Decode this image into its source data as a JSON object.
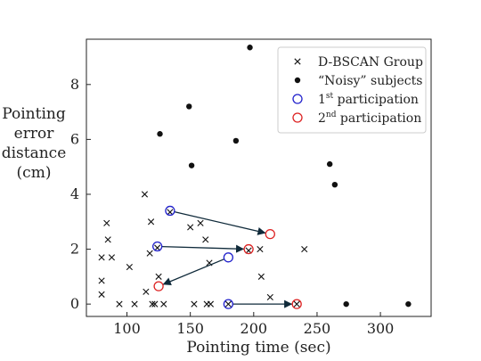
{
  "chart_data": {
    "type": "scatter",
    "xlabel": "Pointing time (sec)",
    "ylabel_lines": [
      "Pointing",
      "error",
      "distance",
      "(cm)"
    ],
    "xlim": [
      68,
      340
    ],
    "ylim": [
      -0.45,
      9.65
    ],
    "xticks": [
      100,
      150,
      200,
      250,
      300
    ],
    "yticks": [
      0,
      2,
      4,
      6,
      8
    ],
    "grid": false,
    "legend_position": "top-right",
    "legend": [
      {
        "label": "D-BSCAN Group",
        "sup": "",
        "suffix": "",
        "marker": "x"
      },
      {
        "label": "“Noisy” subjects",
        "sup": "",
        "suffix": "",
        "marker": "dot"
      },
      {
        "label": "1",
        "sup": "st",
        "suffix": " participation",
        "marker": "circle-blue"
      },
      {
        "label": "2",
        "sup": "nd",
        "suffix": " participation",
        "marker": "circle-red"
      }
    ],
    "colors": {
      "first": "#2222cc",
      "second": "#dd2222",
      "marker": "#111111"
    },
    "series": [
      {
        "name": "D-BSCAN Group",
        "marker": "x",
        "points": [
          [
            80,
            0.35
          ],
          [
            80,
            0.85
          ],
          [
            80,
            1.7
          ],
          [
            84,
            2.95
          ],
          [
            85,
            2.35
          ],
          [
            88,
            1.7
          ],
          [
            94,
            0
          ],
          [
            102,
            1.35
          ],
          [
            106,
            0
          ],
          [
            114,
            4.0
          ],
          [
            115,
            0.45
          ],
          [
            118,
            1.85
          ],
          [
            119,
            3.0
          ],
          [
            120,
            0
          ],
          [
            122,
            0
          ],
          [
            124,
            2.05
          ],
          [
            125,
            1.0
          ],
          [
            129,
            0
          ],
          [
            134,
            3.35
          ],
          [
            150,
            2.8
          ],
          [
            153,
            0
          ],
          [
            158,
            2.95
          ],
          [
            162,
            2.35
          ],
          [
            163,
            0
          ],
          [
            165,
            1.5
          ],
          [
            166,
            0
          ],
          [
            196,
            1.95
          ],
          [
            205,
            2.0
          ],
          [
            206,
            1.0
          ],
          [
            213,
            0.25
          ],
          [
            240,
            2.0
          ],
          [
            180,
            0
          ],
          [
            234,
            0
          ]
        ]
      },
      {
        "name": "“Noisy” subjects",
        "marker": "dot",
        "points": [
          [
            126,
            6.2
          ],
          [
            149,
            7.2
          ],
          [
            151,
            5.05
          ],
          [
            186,
            5.95
          ],
          [
            197,
            9.35
          ],
          [
            260,
            5.1
          ],
          [
            264,
            4.35
          ],
          [
            273,
            0
          ],
          [
            322,
            0
          ]
        ]
      }
    ],
    "participation_pairs": [
      {
        "first": [
          134,
          3.4
        ],
        "second": [
          213,
          2.55
        ]
      },
      {
        "first": [
          124,
          2.1
        ],
        "second": [
          196,
          2.0
        ]
      },
      {
        "first": [
          180,
          1.7
        ],
        "second": [
          125,
          0.65
        ]
      },
      {
        "first": [
          180,
          0
        ],
        "second": [
          234,
          0
        ]
      }
    ]
  }
}
